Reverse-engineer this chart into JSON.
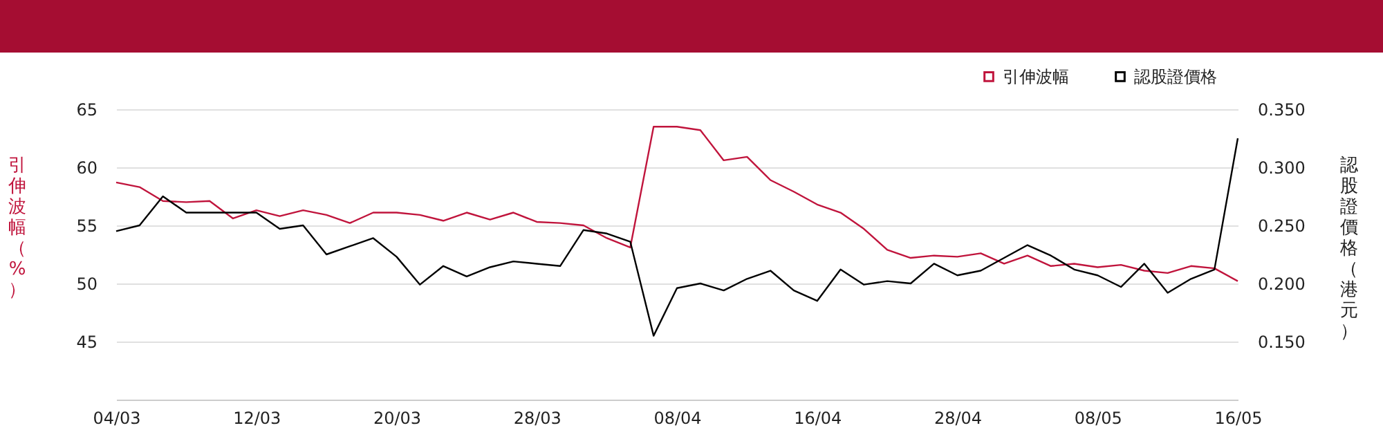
{
  "chart_data": {
    "type": "line",
    "ylabel": "引伸波幅（%）",
    "y2label": "認股證價格（港元）",
    "categories": [
      "04/03",
      null,
      null,
      null,
      null,
      null,
      "12/03",
      null,
      null,
      null,
      null,
      null,
      "20/03",
      null,
      null,
      null,
      null,
      null,
      "28/03",
      null,
      null,
      null,
      null,
      null,
      "08/04",
      null,
      null,
      null,
      null,
      null,
      "16/04",
      null,
      null,
      null,
      null,
      null,
      "28/04",
      null,
      null,
      null,
      null,
      null,
      "08/05",
      null,
      null,
      null,
      null,
      null,
      "16/05"
    ],
    "series": [
      {
        "name": "引伸波幅",
        "color": "#c0143c",
        "values": [
          58.7,
          58.3,
          57.1,
          57.0,
          57.1,
          55.6,
          56.3,
          55.8,
          56.3,
          55.9,
          55.2,
          56.1,
          56.1,
          55.9,
          55.4,
          56.1,
          55.5,
          56.1,
          55.3,
          55.2,
          55.0,
          53.9,
          53.1,
          63.5,
          63.5,
          63.2,
          60.6,
          60.9,
          58.9,
          57.9,
          56.8,
          56.1,
          54.7,
          52.9,
          52.2,
          52.4,
          52.3,
          52.6,
          51.7,
          52.4,
          51.5,
          51.7,
          51.4,
          51.6,
          51.1,
          50.9,
          51.5,
          51.3,
          50.2
        ]
      },
      {
        "name": "認股證價格",
        "color": "#000000",
        "axis": "y2",
        "values": [
          0.245,
          0.25,
          0.275,
          0.261,
          0.261,
          0.261,
          0.261,
          0.247,
          0.25,
          0.225,
          0.232,
          0.239,
          0.223,
          0.199,
          0.215,
          0.206,
          0.214,
          0.219,
          0.217,
          0.215,
          0.246,
          0.243,
          0.236,
          0.155,
          0.196,
          0.2,
          0.194,
          0.204,
          0.211,
          0.194,
          0.185,
          0.212,
          0.199,
          0.202,
          0.2,
          0.217,
          0.207,
          0.211,
          0.222,
          0.233,
          0.224,
          0.212,
          0.207,
          0.197,
          0.217,
          0.192,
          0.204,
          0.212,
          0.325
        ]
      }
    ],
    "ylim": [
      40,
      65
    ],
    "yticks": [
      45,
      50,
      55,
      60,
      65
    ],
    "y2lim": [
      0.1,
      0.35
    ],
    "y2ticks": [
      {
        "value": 0.15,
        "label": "0.150"
      },
      {
        "value": 0.2,
        "label": "0.200"
      },
      {
        "value": 0.25,
        "label": "0.250"
      },
      {
        "value": 0.3,
        "label": "0.300"
      },
      {
        "value": 0.35,
        "label": "0.350"
      }
    ],
    "grid": "y",
    "legend": "top right",
    "marker": "none",
    "line_style": "solid"
  }
}
